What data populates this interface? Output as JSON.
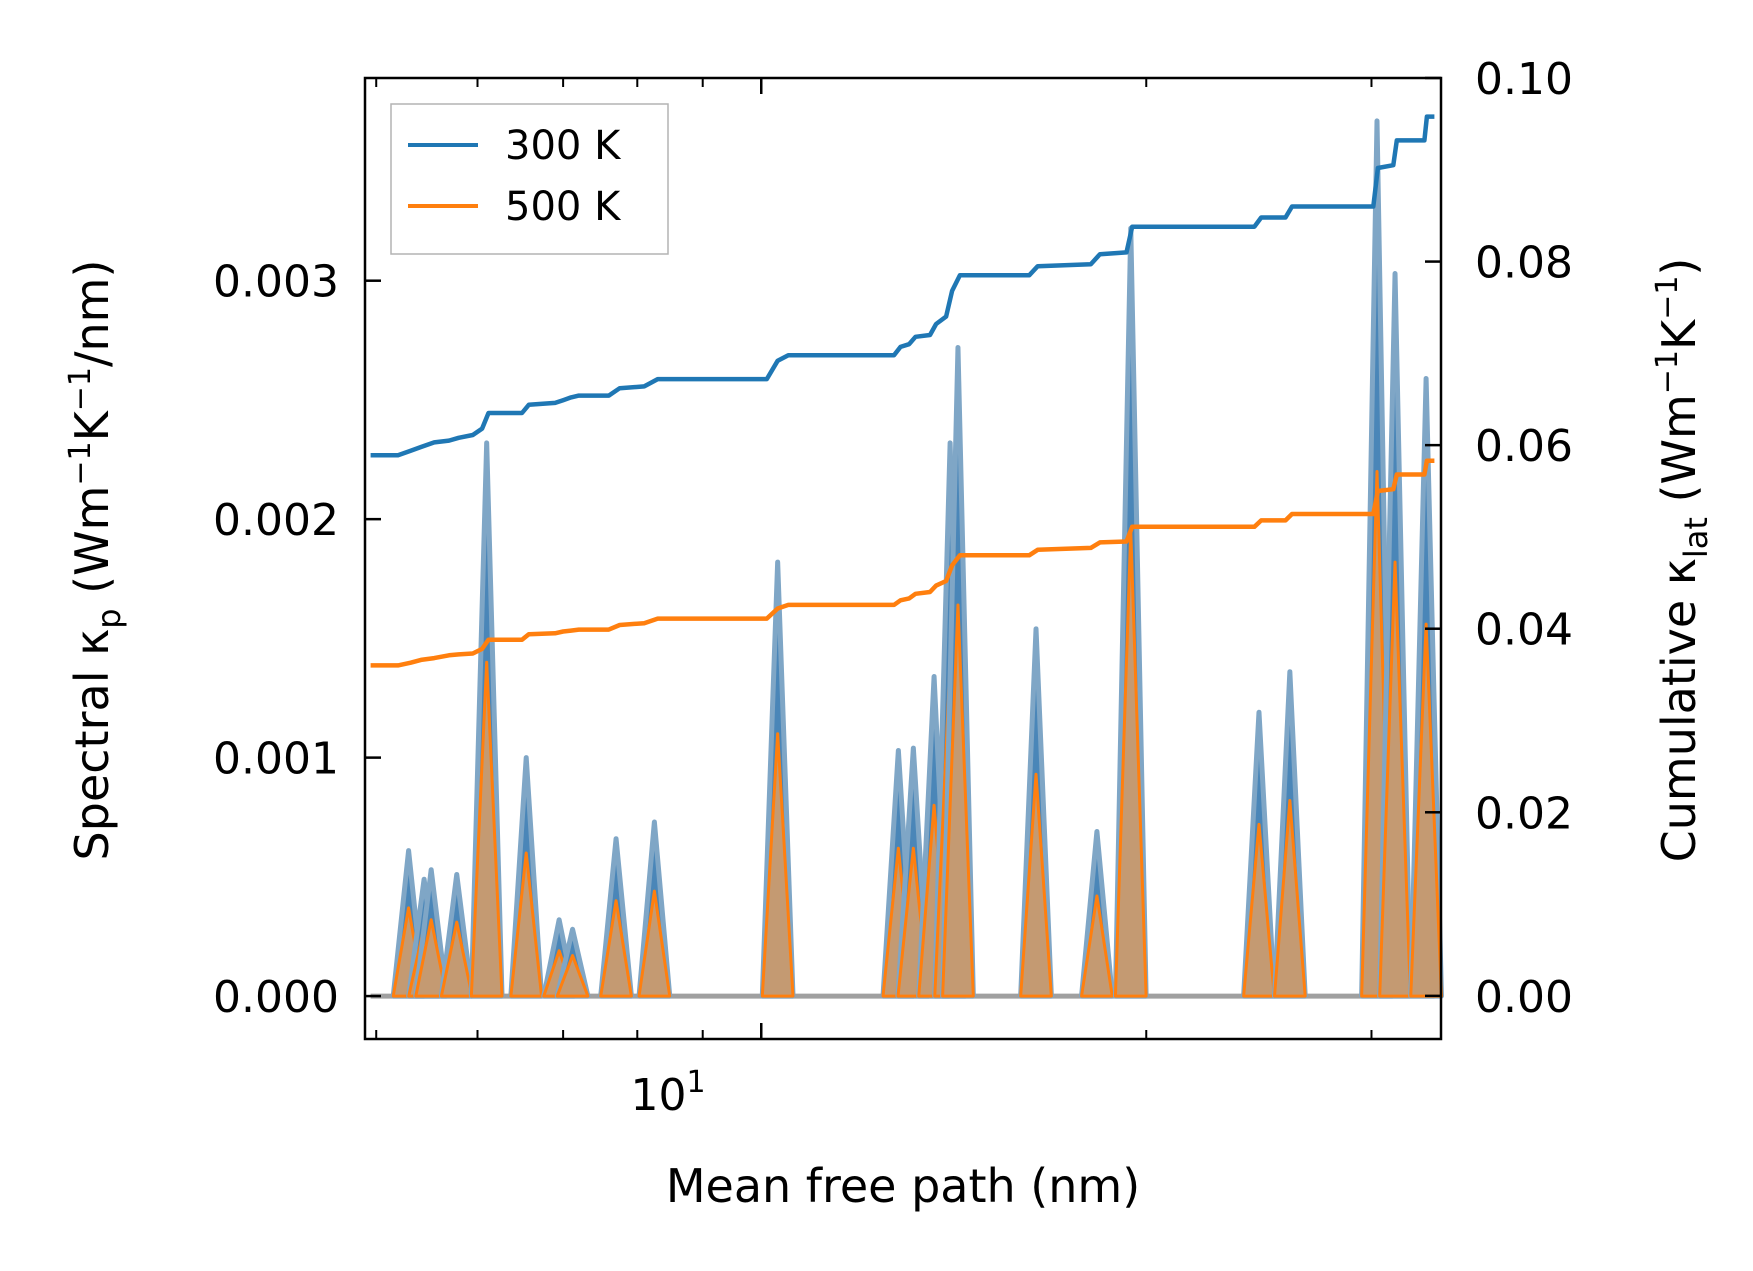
{
  "chart_data": {
    "type": "line",
    "title": "",
    "xlabel": "Mean free path (nm)",
    "xscale": "log",
    "xlim": [
      4.9,
      34
    ],
    "x_tick_label": "10",
    "x_tick_label_exponent": "1",
    "left_axis": {
      "label_main": "Spectral κ",
      "label_sub": "p",
      "label_unit_prefix": " (Wm",
      "label_exp1": "−1",
      "label_mid": "K",
      "label_exp2": "−1",
      "label_suffix": "/nm)",
      "ylim": [
        -0.00018,
        0.00385
      ],
      "ticks": [
        0.0,
        0.001,
        0.002,
        0.003
      ],
      "tick_labels": [
        "0.000",
        "0.001",
        "0.002",
        "0.003"
      ]
    },
    "right_axis": {
      "label_main": "Cumulative κ",
      "label_sub": "lat",
      "label_unit_prefix": " (Wm",
      "label_exp1": "−1",
      "label_mid": "K",
      "label_exp2": "−1",
      "label_suffix": ")",
      "ylim": [
        -0.0047,
        0.1
      ],
      "ticks": [
        0.0,
        0.02,
        0.04,
        0.06,
        0.08,
        0.1
      ],
      "tick_labels": [
        "0.00",
        "0.02",
        "0.04",
        "0.06",
        "0.08",
        "0.10"
      ]
    },
    "legend": {
      "position": "top-left",
      "entries": [
        "300 K",
        "500 K"
      ]
    },
    "colors": {
      "300 K": "#1f77b4",
      "500 K": "#ff7f0e",
      "spectral_300_fill": "#4a86b8",
      "spectral_500_fill": "#c49a72"
    },
    "spectral_peaks": [
      {
        "x": 5.3,
        "v300": 0.00061,
        "v500": 0.00037
      },
      {
        "x": 5.45,
        "v300": 0.00049,
        "v500": 0.00029
      },
      {
        "x": 5.52,
        "v300": 0.00053,
        "v500": 0.00032
      },
      {
        "x": 5.78,
        "v300": 0.00051,
        "v500": 0.00031
      },
      {
        "x": 6.1,
        "v300": 0.00232,
        "v500": 0.0014
      },
      {
        "x": 6.55,
        "v300": 0.001,
        "v500": 0.0006
      },
      {
        "x": 6.95,
        "v300": 0.00032,
        "v500": 0.00019
      },
      {
        "x": 7.12,
        "v300": 0.00028,
        "v500": 0.00017
      },
      {
        "x": 7.7,
        "v300": 0.00066,
        "v500": 0.0004
      },
      {
        "x": 8.25,
        "v300": 0.00073,
        "v500": 0.00044
      },
      {
        "x": 10.3,
        "v300": 0.00182,
        "v500": 0.0011
      },
      {
        "x": 12.8,
        "v300": 0.00103,
        "v500": 0.00062
      },
      {
        "x": 13.15,
        "v300": 0.00104,
        "v500": 0.00062
      },
      {
        "x": 13.65,
        "v300": 0.00134,
        "v500": 0.0008
      },
      {
        "x": 14.05,
        "v300": 0.00232,
        "v500": 0.0014
      },
      {
        "x": 14.25,
        "v300": 0.00272,
        "v500": 0.00164
      },
      {
        "x": 16.4,
        "v300": 0.00154,
        "v500": 0.00093
      },
      {
        "x": 18.3,
        "v300": 0.00069,
        "v500": 0.00042
      },
      {
        "x": 19.45,
        "v300": 0.00322,
        "v500": 0.00195
      },
      {
        "x": 24.5,
        "v300": 0.00119,
        "v500": 0.00072
      },
      {
        "x": 25.9,
        "v300": 0.00136,
        "v500": 0.00082
      },
      {
        "x": 30.3,
        "v300": 0.00367,
        "v500": 0.0022
      },
      {
        "x": 31.3,
        "v300": 0.00303,
        "v500": 0.00182
      },
      {
        "x": 33.1,
        "v300": 0.00259,
        "v500": 0.00156
      }
    ],
    "series": [
      {
        "name": "300 K",
        "x": [
          4.95,
          5.2,
          5.32,
          5.42,
          5.55,
          5.7,
          5.8,
          5.95,
          6.05,
          6.12,
          6.5,
          6.58,
          6.9,
          7.0,
          7.1,
          7.2,
          7.6,
          7.75,
          8.1,
          8.3,
          10.1,
          10.3,
          10.5,
          12.7,
          12.85,
          13.05,
          13.2,
          13.55,
          13.7,
          13.95,
          14.1,
          14.3,
          16.2,
          16.45,
          18.1,
          18.4,
          19.3,
          19.5,
          24.3,
          24.6,
          25.7,
          26.0,
          30.1,
          30.35,
          31.2,
          31.4,
          33.0,
          33.15,
          33.6
        ],
        "y": [
          0.0589,
          0.0589,
          0.0594,
          0.0598,
          0.0603,
          0.0605,
          0.0608,
          0.0611,
          0.0618,
          0.0635,
          0.0635,
          0.0644,
          0.0646,
          0.0649,
          0.0652,
          0.0654,
          0.0654,
          0.0662,
          0.0664,
          0.0672,
          0.0672,
          0.0692,
          0.0698,
          0.0698,
          0.0707,
          0.071,
          0.0718,
          0.072,
          0.0732,
          0.074,
          0.0768,
          0.0785,
          0.0785,
          0.0795,
          0.0797,
          0.0808,
          0.081,
          0.0838,
          0.0838,
          0.0848,
          0.0848,
          0.086,
          0.086,
          0.0902,
          0.0905,
          0.0932,
          0.0932,
          0.0958,
          0.0958
        ]
      },
      {
        "name": "500 K",
        "x": [
          4.95,
          5.2,
          5.32,
          5.42,
          5.55,
          5.7,
          5.8,
          5.95,
          6.05,
          6.12,
          6.5,
          6.58,
          6.9,
          7.0,
          7.1,
          7.2,
          7.6,
          7.75,
          8.1,
          8.3,
          10.1,
          10.3,
          10.5,
          12.7,
          12.85,
          13.05,
          13.2,
          13.55,
          13.7,
          13.95,
          14.1,
          14.3,
          16.2,
          16.45,
          18.1,
          18.4,
          19.3,
          19.5,
          24.3,
          24.6,
          25.7,
          26.0,
          30.1,
          30.35,
          31.2,
          31.4,
          33.0,
          33.15,
          33.6
        ],
        "y": [
          0.036,
          0.036,
          0.0363,
          0.0366,
          0.0368,
          0.0371,
          0.0372,
          0.0373,
          0.0378,
          0.0388,
          0.0388,
          0.0394,
          0.0395,
          0.0397,
          0.0398,
          0.0399,
          0.0399,
          0.0404,
          0.0406,
          0.0411,
          0.0411,
          0.0422,
          0.0426,
          0.0426,
          0.0431,
          0.0433,
          0.0438,
          0.044,
          0.0447,
          0.0452,
          0.0469,
          0.048,
          0.048,
          0.0486,
          0.0488,
          0.0494,
          0.0495,
          0.0511,
          0.0511,
          0.0518,
          0.0518,
          0.0525,
          0.0525,
          0.055,
          0.0552,
          0.0568,
          0.0568,
          0.0583,
          0.0583
        ]
      }
    ]
  }
}
